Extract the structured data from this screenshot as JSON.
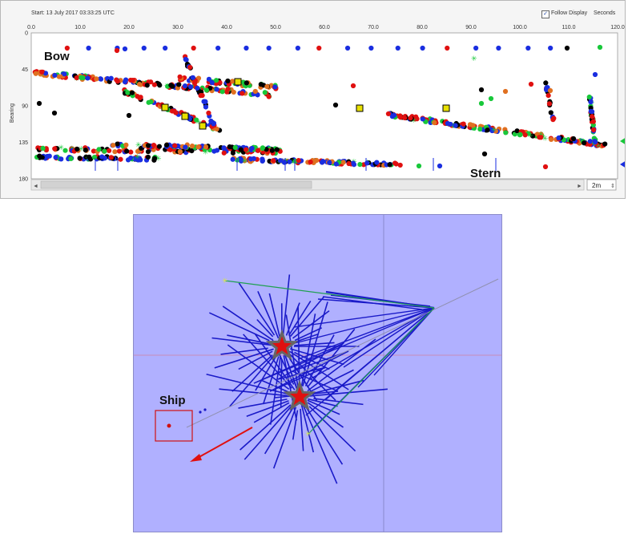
{
  "header": {
    "start_text": "Start: 13 July 2017 03:33:25 UTC",
    "follow_display_label": "Follow Display",
    "follow_display_checked": true,
    "units_label": "Seconds"
  },
  "bearing_plot": {
    "y_axis_label": "Bearing",
    "x_ticks": [
      "0.0",
      "10.0",
      "20.0",
      "30.0",
      "40.0",
      "50.0",
      "60.0",
      "70.0",
      "80.0",
      "90.0",
      "100.0",
      "110.0",
      "120.0"
    ],
    "y_ticks": [
      "0",
      "45",
      "90",
      "135",
      "180"
    ],
    "x_range": [
      0,
      120
    ],
    "y_range": [
      0,
      180
    ],
    "annotations": {
      "bow": "Bow",
      "stern": "Stern"
    },
    "colors": {
      "blue": "#1a2ee0",
      "red": "#e01010",
      "black": "#000000",
      "orange": "#e07020",
      "green": "#18c83a",
      "yellow": "#e8e000"
    }
  },
  "scrollbar": {
    "zoom_value": "2m",
    "left_arrow": "◄",
    "right_arrow": "►"
  },
  "map_view": {
    "ship_label": "Ship",
    "background_color": "#b0b0ff",
    "line_color": "#1a1ac8",
    "star_color": "#e01010"
  }
}
